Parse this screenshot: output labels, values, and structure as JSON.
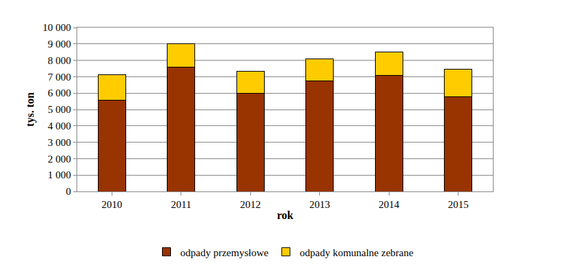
{
  "chart_data": {
    "type": "bar",
    "stacked": true,
    "x_label": "rok",
    "y_label": "tys. ton",
    "categories": [
      "2010",
      "2011",
      "2012",
      "2013",
      "2014",
      "2015"
    ],
    "series": [
      {
        "name": "odpady przemysłowe",
        "color": "#993300",
        "values": [
          5550,
          7600,
          5980,
          6730,
          7080,
          5790
        ]
      },
      {
        "name": "odpady komunalne zebrane",
        "color": "#FFCC00",
        "values": [
          1580,
          1400,
          1350,
          1340,
          1440,
          1660
        ]
      }
    ],
    "ylim": [
      0,
      10000
    ],
    "yticks": [
      0,
      {
        "value": 1000,
        "label": "1 000"
      },
      {
        "value": 2000,
        "label": "2 000"
      },
      {
        "value": 3000,
        "label": "3 000"
      },
      {
        "value": 4000,
        "label": "4 000"
      },
      {
        "value": 5000,
        "label": "5 000"
      },
      {
        "value": 6000,
        "label": "6 000"
      },
      {
        "value": 7000,
        "label": "7 000"
      },
      {
        "value": 8000,
        "label": "8 000"
      },
      {
        "value": 9000,
        "label": "9 000"
      },
      {
        "value": 10000,
        "label": "10 000"
      }
    ],
    "grid": true,
    "legend": "bottom"
  }
}
